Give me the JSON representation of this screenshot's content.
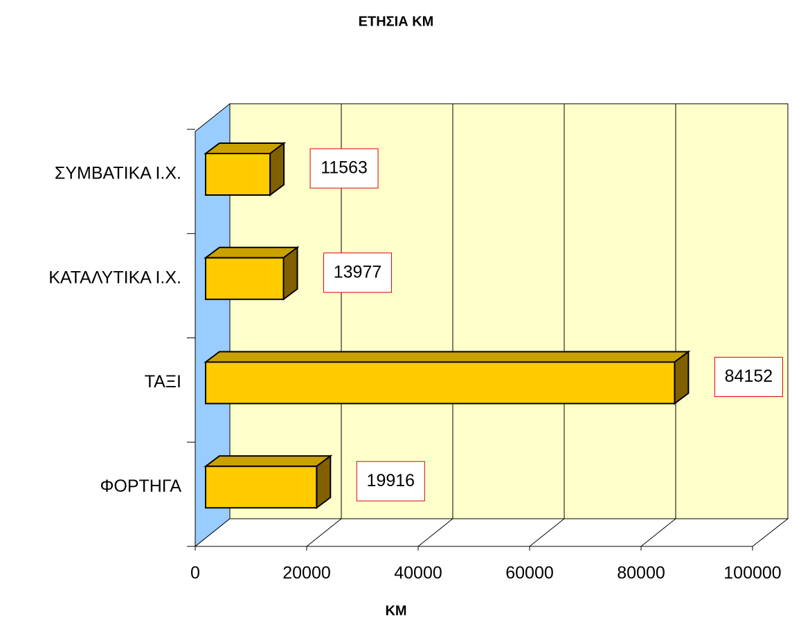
{
  "chart_data": {
    "type": "bar3d_horizontal",
    "title": "ΕΤΗΣΙΑ  ΚΜ",
    "x_label": "ΚΜ",
    "categories": [
      "ΣΥΜΒΑΤΙΚΑ Ι.Χ.",
      "ΚΑΤΑΛΥΤΙΚΑ Ι.Χ.",
      "ΤΑΞΙ",
      "ΦΟΡΤΗΓΑ"
    ],
    "values": [
      11563,
      13977,
      84152,
      19916
    ],
    "color": "#ffcc00",
    "xlim": [
      0,
      100000
    ],
    "xticks": [
      0,
      20000,
      40000,
      60000,
      80000,
      100000
    ],
    "grid": true
  }
}
